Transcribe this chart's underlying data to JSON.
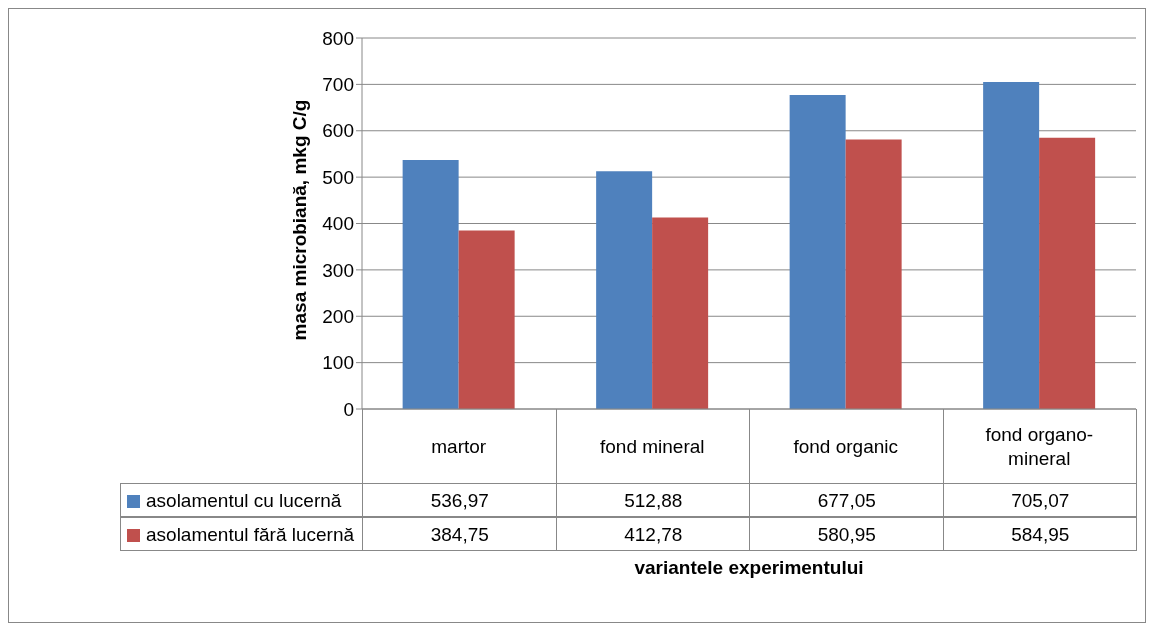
{
  "chart_data": {
    "type": "bar",
    "xlabel": "variantele experimentului",
    "ylabel": "masa microbiană, mkg C/g",
    "categories": [
      "martor",
      "fond mineral",
      "fond organic",
      "fond organo-mineral"
    ],
    "series": [
      {
        "name": "asolamentul cu lucernă",
        "color": "#4f81bd",
        "values": [
          536.97,
          512.88,
          677.05,
          705.07
        ],
        "value_labels": [
          "536,97",
          "512,88",
          "677,05",
          "705,07"
        ]
      },
      {
        "name": "asolamentul fără lucernă",
        "color": "#c0504d",
        "values": [
          384.75,
          412.78,
          580.95,
          584.95
        ],
        "value_labels": [
          "384,75",
          "412,78",
          "580,95",
          "584,95"
        ]
      }
    ],
    "ylim": [
      0,
      800
    ],
    "yticks": [
      0,
      100,
      200,
      300,
      400,
      500,
      600,
      700,
      800
    ],
    "grid": "y",
    "legend": "bottom left"
  }
}
